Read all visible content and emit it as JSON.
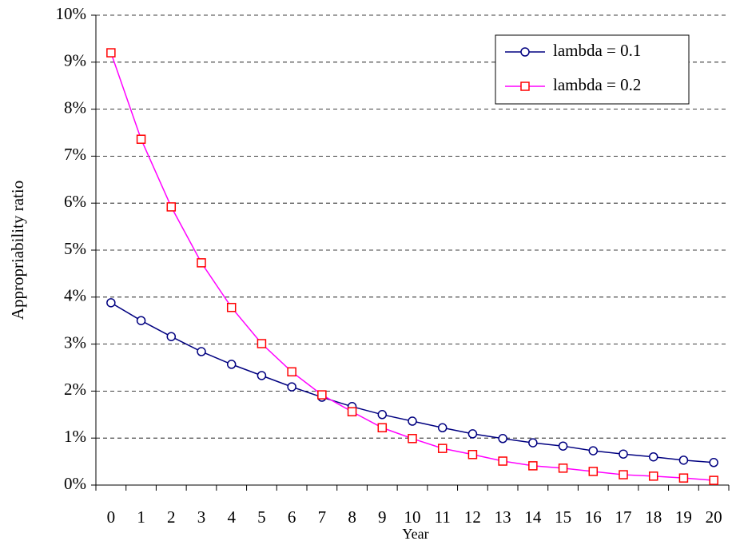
{
  "chart_data": {
    "type": "line",
    "x_label": "Year",
    "y_label": "Appropriability ratio",
    "categories": [
      "0",
      "1",
      "2",
      "3",
      "4",
      "5",
      "6",
      "7",
      "8",
      "9",
      "10",
      "11",
      "12",
      "13",
      "14",
      "15",
      "16",
      "17",
      "18",
      "19",
      "20"
    ],
    "series": [
      {
        "name": "lambda = 0.1",
        "color": "#000080",
        "marker": "circle",
        "marker_color": "#000080",
        "values": [
          3.88,
          3.5,
          3.16,
          2.84,
          2.57,
          2.33,
          2.09,
          1.87,
          1.67,
          1.5,
          1.36,
          1.22,
          1.09,
          0.99,
          0.9,
          0.83,
          0.73,
          0.66,
          0.6,
          0.53,
          0.48
        ]
      },
      {
        "name": "lambda = 0.2",
        "color": "#ff00ff",
        "marker": "square",
        "marker_color": "#ff0000",
        "values": [
          9.2,
          7.36,
          5.92,
          4.73,
          3.78,
          3.01,
          2.41,
          1.92,
          1.56,
          1.22,
          0.99,
          0.78,
          0.65,
          0.51,
          0.41,
          0.36,
          0.29,
          0.22,
          0.19,
          0.15,
          0.1
        ]
      }
    ],
    "ylim": [
      0,
      10
    ],
    "yticks": [
      {
        "value": 0,
        "label": "0%"
      },
      {
        "value": 1,
        "label": "1%"
      },
      {
        "value": 2,
        "label": "2%"
      },
      {
        "value": 3,
        "label": "3%"
      },
      {
        "value": 4,
        "label": "4%"
      },
      {
        "value": 5,
        "label": "5%"
      },
      {
        "value": 6,
        "label": "6%"
      },
      {
        "value": 7,
        "label": "7%"
      },
      {
        "value": 8,
        "label": "8%"
      },
      {
        "value": 9,
        "label": "9%"
      },
      {
        "value": 10,
        "label": "10%"
      }
    ],
    "grid": true,
    "legend": "upper right"
  }
}
